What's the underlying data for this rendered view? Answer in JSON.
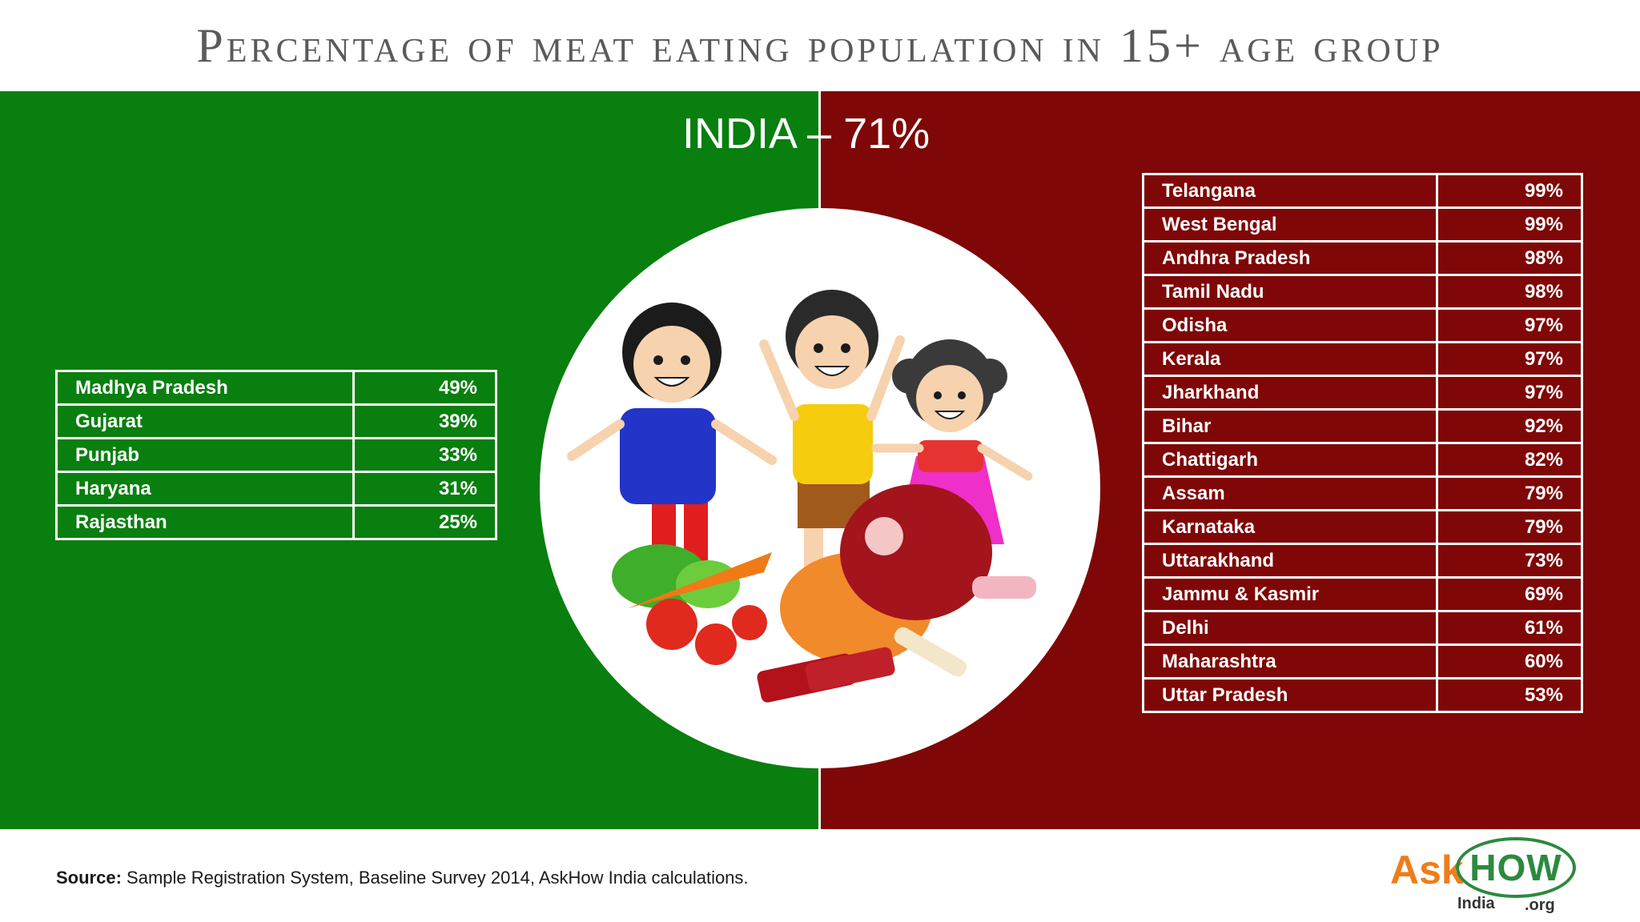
{
  "title": "Percentage of meat eating population in 15+ age group",
  "india_label": "INDIA – 71%",
  "colors": {
    "left_panel": "#087f0f",
    "right_panel": "#7f0707",
    "logo_orange": "#ef7d1a",
    "logo_green": "#2b8a3e"
  },
  "illustration": "children-with-vegetables-and-meat-illustration",
  "left_table": [
    {
      "state": "Madhya Pradesh",
      "value": "49%"
    },
    {
      "state": "Gujarat",
      "value": "39%"
    },
    {
      "state": "Punjab",
      "value": "33%"
    },
    {
      "state": "Haryana",
      "value": "31%"
    },
    {
      "state": "Rajasthan",
      "value": "25%"
    }
  ],
  "right_table": [
    {
      "state": "Telangana",
      "value": "99%"
    },
    {
      "state": "West Bengal",
      "value": "99%"
    },
    {
      "state": "Andhra Pradesh",
      "value": "98%"
    },
    {
      "state": "Tamil Nadu",
      "value": "98%"
    },
    {
      "state": "Odisha",
      "value": "97%"
    },
    {
      "state": "Kerala",
      "value": "97%"
    },
    {
      "state": "Jharkhand",
      "value": "97%"
    },
    {
      "state": "Bihar",
      "value": "92%"
    },
    {
      "state": "Chattigarh",
      "value": "82%"
    },
    {
      "state": "Assam",
      "value": "79%"
    },
    {
      "state": "Karnataka",
      "value": "79%"
    },
    {
      "state": "Uttarakhand",
      "value": "73%"
    },
    {
      "state": "Jammu & Kasmir",
      "value": "69%"
    },
    {
      "state": "Delhi",
      "value": "61%"
    },
    {
      "state": "Maharashtra",
      "value": "60%"
    },
    {
      "state": "Uttar Pradesh",
      "value": "53%"
    }
  ],
  "footer": {
    "source_label": "Source:",
    "source_text": " Sample Registration System, Baseline Survey 2014, AskHow India calculations."
  },
  "logo": {
    "ask": "Ask",
    "how": "HOW",
    "india": "India",
    "org": ".org"
  }
}
